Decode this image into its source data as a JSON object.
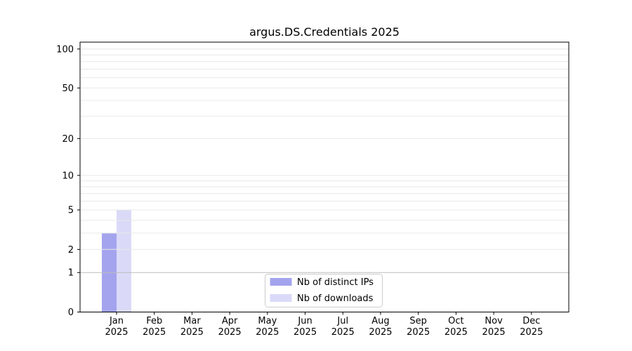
{
  "chart_data": {
    "type": "bar",
    "title": "argus.DS.Credentials 2025",
    "categories": [
      "Jan",
      "Feb",
      "Mar",
      "Apr",
      "May",
      "Jun",
      "Jul",
      "Aug",
      "Sep",
      "Oct",
      "Nov",
      "Dec"
    ],
    "category_year": "2025",
    "series": [
      {
        "name": "Nb of distinct IPs",
        "color": "#a4a4ee",
        "values": [
          3,
          0,
          0,
          0,
          0,
          0,
          0,
          0,
          0,
          0,
          0,
          0
        ]
      },
      {
        "name": "Nb of downloads",
        "color": "#dadaf8",
        "values": [
          5,
          0,
          0,
          0,
          0,
          0,
          0,
          0,
          0,
          0,
          0,
          0
        ]
      }
    ],
    "xlabel": "",
    "ylabel": "",
    "yscale": "log1p",
    "ylim": [
      0,
      113
    ],
    "yticks": [
      0,
      1,
      2,
      5,
      10,
      20,
      50,
      100
    ],
    "gridlines": {
      "minor_values": [
        2,
        3,
        4,
        5,
        6,
        7,
        8,
        9,
        10,
        20,
        30,
        40,
        50,
        60,
        70,
        80,
        90,
        100
      ],
      "major_values": [
        1
      ],
      "minor_color": "#e8e8e8",
      "major_color": "#bbbbbb",
      "orientation": "horizontal"
    },
    "legend": {
      "position": "lower-center",
      "border_color": "#cccccc",
      "background": "#ffffff"
    },
    "axis_color": "#000000",
    "grid": "on"
  }
}
